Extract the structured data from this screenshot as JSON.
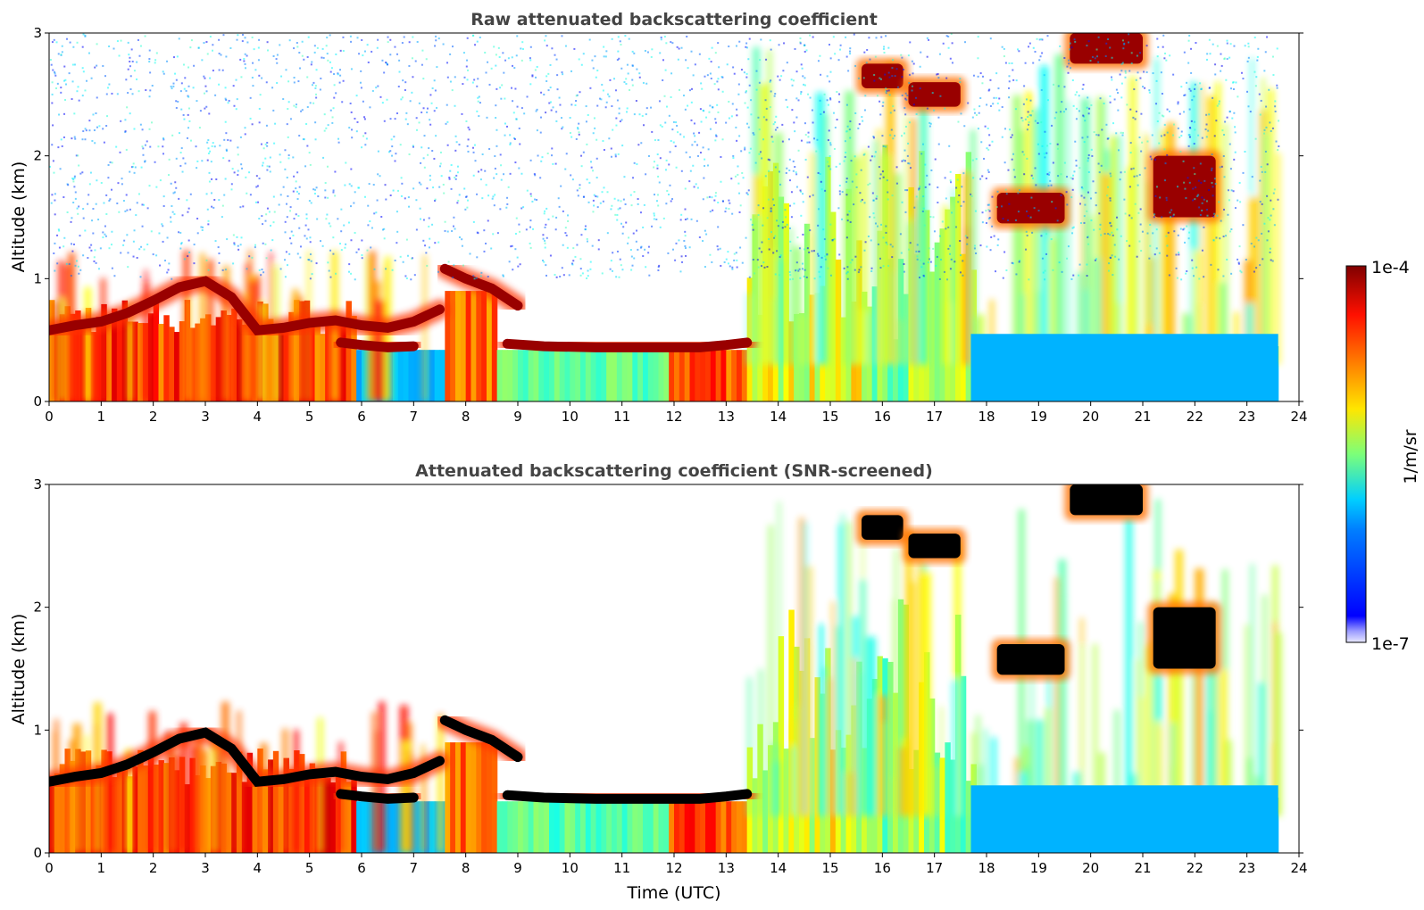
{
  "chart_data": [
    {
      "type": "heatmap",
      "title": "Raw attenuated backscattering coefficient",
      "xlabel": "",
      "ylabel": "Altitude (km)",
      "xlim": [
        0,
        24
      ],
      "ylim": [
        0,
        3
      ],
      "xticks": [
        "0",
        "1",
        "2",
        "3",
        "4",
        "5",
        "6",
        "7",
        "8",
        "9",
        "10",
        "11",
        "12",
        "13",
        "14",
        "15",
        "16",
        "17",
        "18",
        "19",
        "20",
        "21",
        "22",
        "23",
        "24"
      ],
      "yticks": [
        "0",
        "1",
        "2",
        "3"
      ],
      "data_end_time": 23.6,
      "features": [
        {
          "kind": "layer",
          "t": [
            0.0,
            0.5,
            1.0,
            1.5,
            2.0,
            2.5,
            3.0,
            3.5,
            4.0,
            4.5,
            5.0,
            5.5,
            6.0,
            6.5,
            7.0,
            7.5
          ],
          "alt": [
            0.58,
            0.62,
            0.65,
            0.72,
            0.82,
            0.93,
            0.98,
            0.85,
            0.58,
            0.6,
            0.64,
            0.66,
            0.62,
            0.6,
            0.65,
            0.75
          ]
        },
        {
          "kind": "layer",
          "t": [
            7.6,
            8.0,
            8.5,
            9.0
          ],
          "alt": [
            1.08,
            1.0,
            0.92,
            0.78
          ]
        },
        {
          "kind": "layer",
          "t": [
            5.6,
            6.0,
            6.5,
            7.0
          ],
          "alt": [
            0.48,
            0.46,
            0.44,
            0.45
          ]
        },
        {
          "kind": "layer",
          "t": [
            8.8,
            9.5,
            10.5,
            11.5,
            12.5,
            13.0,
            13.4
          ],
          "alt": [
            0.47,
            0.45,
            0.44,
            0.44,
            0.44,
            0.46,
            0.48
          ]
        },
        {
          "kind": "cloud",
          "t": [
            15.6,
            16.4
          ],
          "alt": [
            2.55,
            2.75
          ]
        },
        {
          "kind": "cloud",
          "t": [
            16.5,
            17.5
          ],
          "alt": [
            2.4,
            2.6
          ]
        },
        {
          "kind": "cloud",
          "t": [
            18.2,
            19.5
          ],
          "alt": [
            1.45,
            1.7
          ]
        },
        {
          "kind": "cloud",
          "t": [
            19.6,
            21.0
          ],
          "alt": [
            2.75,
            3.0
          ]
        },
        {
          "kind": "cloud",
          "t": [
            21.2,
            22.4
          ],
          "alt": [
            1.5,
            2.0
          ]
        }
      ]
    },
    {
      "type": "heatmap",
      "title": "Attenuated backscattering coefficient (SNR-screened)",
      "xlabel": "Time (UTC)",
      "ylabel": "Altitude (km)",
      "xlim": [
        0,
        24
      ],
      "ylim": [
        0,
        3
      ],
      "xticks": [
        "0",
        "1",
        "2",
        "3",
        "4",
        "5",
        "6",
        "7",
        "8",
        "9",
        "10",
        "11",
        "12",
        "13",
        "14",
        "15",
        "16",
        "17",
        "18",
        "19",
        "20",
        "21",
        "22",
        "23",
        "24"
      ],
      "yticks": [
        "0",
        "1",
        "2",
        "3"
      ],
      "data_end_time": 23.6,
      "screened": true
    }
  ],
  "colorbar": {
    "label": "1/m/sr",
    "max_label": "1e-4",
    "min_label": "1e-7",
    "colormap": "jet"
  },
  "colors": {
    "title": "#444444",
    "low": "#0000ff",
    "high": "#800000",
    "saturated": "#000000",
    "background": "#ffffff"
  }
}
